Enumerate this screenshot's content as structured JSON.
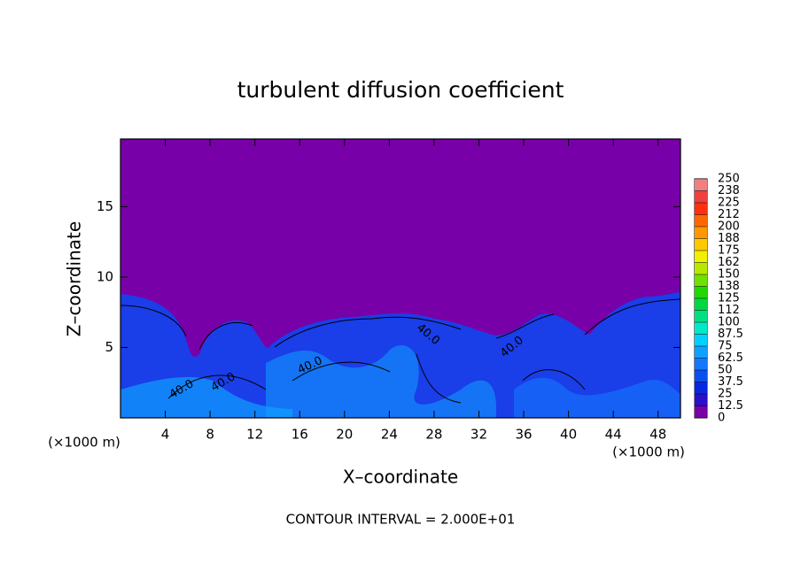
{
  "chart_data": {
    "type": "contour",
    "title": "turbulent diffusion coefficient",
    "x_label": "X–coordinate",
    "y_label": "Z–coordinate",
    "x_unit_note": "(×1000 m)",
    "x_unit_note_right": "(×1000 m)",
    "footnote": "CONTOUR INTERVAL = 2.000E+01",
    "xlim": [
      0,
      50
    ],
    "xticks": [
      4,
      8,
      12,
      16,
      20,
      24,
      28,
      32,
      36,
      40,
      44,
      48
    ],
    "ylim": [
      0,
      19.8
    ],
    "yticks": [
      5,
      10,
      15
    ],
    "contour_labels": [
      "40.0",
      "40.0",
      "40.0",
      "40.0",
      "40.0"
    ],
    "colorbar": {
      "levels": [
        0,
        12.5,
        25,
        37.5,
        50,
        62.5,
        75,
        87.5,
        100,
        112,
        125,
        138,
        150,
        162,
        175,
        188,
        200,
        212,
        225,
        238,
        250
      ],
      "colors": [
        "#7800a8",
        "#2a10c8",
        "#0828e0",
        "#0a50f0",
        "#1478ff",
        "#10a0ff",
        "#00d0ff",
        "#00e8c8",
        "#00e080",
        "#00d840",
        "#20d800",
        "#70e000",
        "#b8e800",
        "#f0f000",
        "#ffc800",
        "#ff9800",
        "#ff6800",
        "#ff3010",
        "#f04040",
        "#f08080"
      ]
    }
  }
}
